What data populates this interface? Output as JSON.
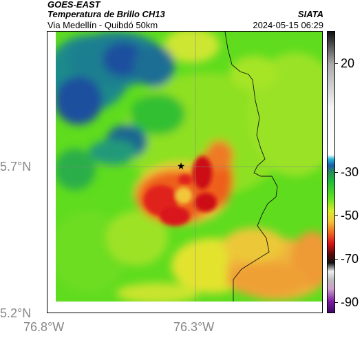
{
  "header": {
    "satellite": "GOES-EAST",
    "product": "Temperatura de Brillo CH13",
    "region": "Via Medellín - Quibdó 50km",
    "org": "SIATA",
    "datetime": "2024-05-15 06:29"
  },
  "axes": {
    "x_ticks": [
      "76.8°W",
      "76.3°W"
    ],
    "y_ticks": [
      "5.7°N",
      "5.2°N"
    ]
  },
  "colorbar": {
    "labels": [
      "20",
      "-30",
      "-50",
      "-70",
      "-90"
    ],
    "values": [
      20,
      -30,
      -50,
      -70,
      -90
    ],
    "range": [
      -95,
      35
    ]
  },
  "marker": {
    "symbol": "★"
  }
}
